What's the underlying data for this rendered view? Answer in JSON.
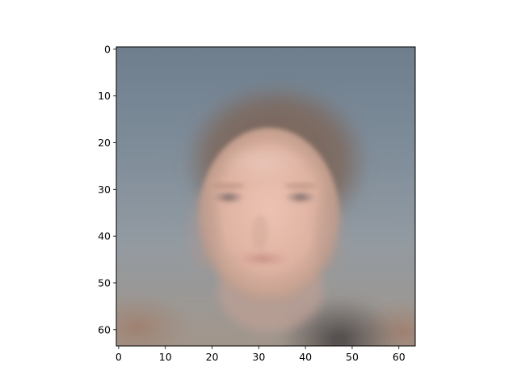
{
  "figure": {
    "title": "",
    "xlabel": "",
    "ylabel": ""
  },
  "image": {
    "description_icon": "blurry-face-image",
    "pixel_grid": [
      64,
      64
    ],
    "colors": {
      "background_top": "#6f7f8e",
      "background_mid": "#8b98a3",
      "background_bottom": "#a39a90",
      "skin": "#e2b7a6",
      "skin_shade": "#c99e8f",
      "hair": "#7a5f4f",
      "lips": "#c98f84",
      "eyes": "#6e6466",
      "shoulder_dark": "#4a4446"
    }
  },
  "axes": {
    "xlim": [
      -0.5,
      63.5
    ],
    "ylim": [
      63.5,
      -0.5
    ],
    "x_ticks": [
      {
        "value": 0,
        "label": "0"
      },
      {
        "value": 10,
        "label": "10"
      },
      {
        "value": 20,
        "label": "20"
      },
      {
        "value": 30,
        "label": "30"
      },
      {
        "value": 40,
        "label": "40"
      },
      {
        "value": 50,
        "label": "50"
      },
      {
        "value": 60,
        "label": "60"
      }
    ],
    "y_ticks": [
      {
        "value": 0,
        "label": "0"
      },
      {
        "value": 10,
        "label": "10"
      },
      {
        "value": 20,
        "label": "20"
      },
      {
        "value": 30,
        "label": "30"
      },
      {
        "value": 40,
        "label": "40"
      },
      {
        "value": 50,
        "label": "50"
      },
      {
        "value": 60,
        "label": "60"
      }
    ]
  }
}
